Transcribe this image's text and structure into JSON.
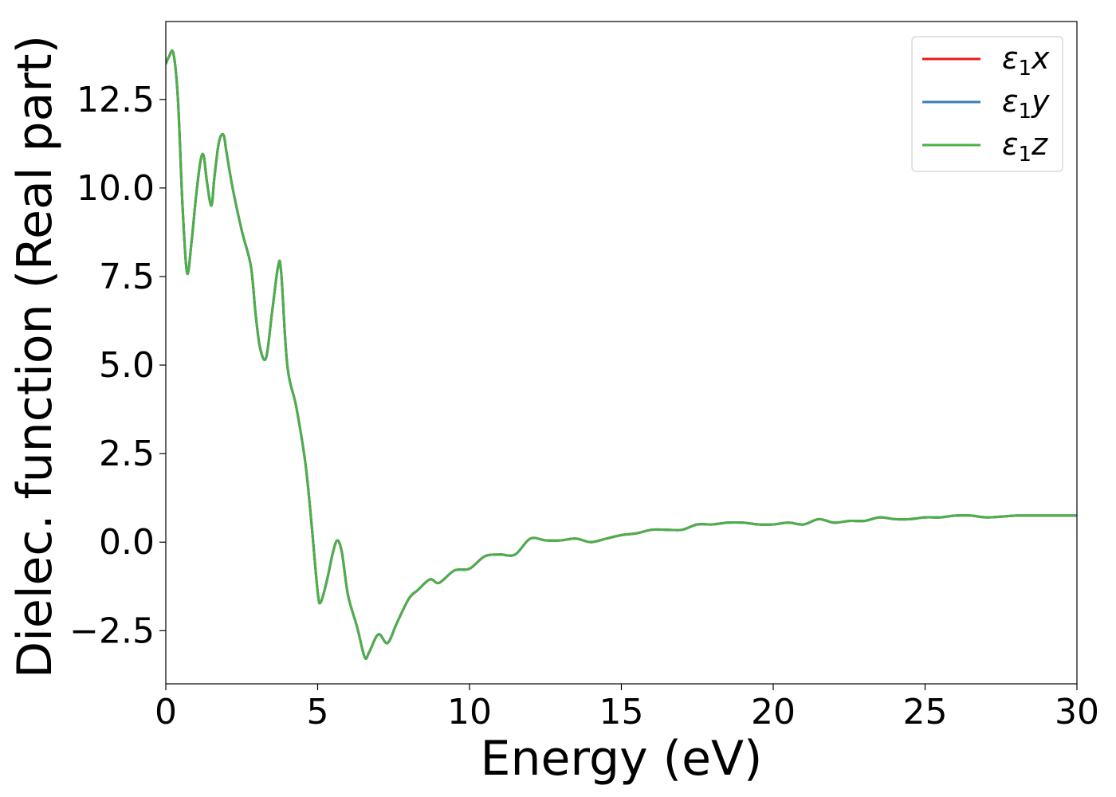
{
  "chart_data": {
    "type": "line",
    "title": "",
    "xlabel": "Energy (eV)",
    "ylabel": "Dielec. function (Real part)",
    "xlim": [
      0,
      30
    ],
    "ylim": [
      -4.0,
      14.7
    ],
    "x_ticks": [
      0,
      5,
      10,
      15,
      20,
      25,
      30
    ],
    "x_tick_labels": [
      "0",
      "5",
      "10",
      "15",
      "20",
      "25",
      "30"
    ],
    "y_ticks": [
      -2.5,
      0.0,
      2.5,
      5.0,
      7.5,
      10.0,
      12.5
    ],
    "y_tick_labels": [
      "−2.5",
      "0.0",
      "2.5",
      "5.0",
      "7.5",
      "10.0",
      "12.5"
    ],
    "grid": false,
    "legend_position": "top-right",
    "series": [
      {
        "name": "ε",
        "sub": "1",
        "suffix": "x",
        "color": "#e41a1c"
      },
      {
        "name": "ε",
        "sub": "1",
        "suffix": "y",
        "color": "#377eb8"
      },
      {
        "name": "ε",
        "sub": "1",
        "suffix": "z",
        "color": "#4daf4a"
      }
    ],
    "shared_curve": {
      "x": [
        0,
        0.1,
        0.25,
        0.4,
        0.55,
        0.7,
        0.85,
        1.0,
        1.15,
        1.25,
        1.35,
        1.5,
        1.6,
        1.75,
        1.9,
        2.0,
        2.2,
        2.5,
        2.8,
        2.95,
        3.1,
        3.3,
        3.5,
        3.7,
        3.8,
        4.0,
        4.3,
        4.6,
        4.8,
        5.0,
        5.1,
        5.3,
        5.5,
        5.65,
        5.8,
        6.0,
        6.3,
        6.55,
        6.7,
        7.0,
        7.3,
        7.6,
        8.0,
        8.3,
        8.7,
        9.0,
        9.5,
        10.0,
        10.5,
        11.0,
        11.5,
        12.0,
        12.5,
        13.0,
        13.5,
        14.0,
        14.5,
        15.0,
        15.5,
        16.0,
        16.5,
        17.0,
        17.5,
        18.0,
        18.5,
        19.0,
        19.5,
        20.0,
        20.5,
        21.0,
        21.5,
        22.0,
        22.5,
        23.0,
        23.5,
        24.0,
        24.5,
        25.0,
        25.5,
        26.0,
        26.5,
        27.0,
        27.5,
        28.0,
        28.5,
        29.0,
        29.5,
        30.0
      ],
      "y": [
        13.5,
        13.7,
        13.8,
        12.5,
        9.5,
        7.6,
        8.5,
        9.8,
        10.8,
        10.9,
        10.2,
        9.5,
        10.3,
        11.3,
        11.5,
        11.0,
        10.0,
        8.8,
        7.8,
        6.5,
        5.5,
        5.2,
        6.5,
        7.8,
        7.6,
        5.0,
        3.8,
        2.2,
        0.5,
        -1.4,
        -1.7,
        -1.1,
        -0.3,
        0.05,
        -0.3,
        -1.5,
        -2.4,
        -3.25,
        -3.1,
        -2.6,
        -2.85,
        -2.3,
        -1.6,
        -1.35,
        -1.05,
        -1.15,
        -0.8,
        -0.75,
        -0.4,
        -0.35,
        -0.35,
        0.1,
        0.05,
        0.05,
        0.1,
        0.0,
        0.1,
        0.2,
        0.25,
        0.35,
        0.35,
        0.35,
        0.5,
        0.5,
        0.55,
        0.55,
        0.5,
        0.5,
        0.55,
        0.5,
        0.65,
        0.55,
        0.6,
        0.6,
        0.7,
        0.65,
        0.65,
        0.7,
        0.7,
        0.75,
        0.75,
        0.7,
        0.72,
        0.75,
        0.75,
        0.75,
        0.75,
        0.75
      ]
    }
  }
}
